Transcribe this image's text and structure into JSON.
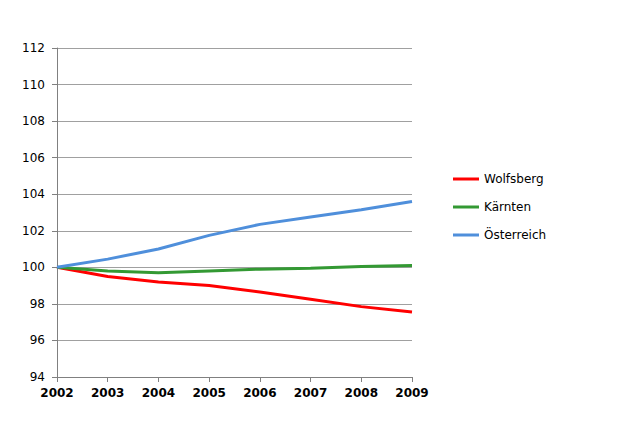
{
  "chart_data": {
    "type": "line",
    "categories": [
      "2002",
      "2003",
      "2004",
      "2005",
      "2006",
      "2007",
      "2008",
      "2009"
    ],
    "series": [
      {
        "name": "Wolfsberg",
        "color": "#ff0000",
        "values": [
          100,
          99.5,
          99.2,
          99.0,
          98.65,
          98.25,
          97.85,
          97.55
        ]
      },
      {
        "name": "Kärnten",
        "color": "#339933",
        "values": [
          100,
          99.8,
          99.7,
          99.8,
          99.9,
          99.95,
          100.05,
          100.1
        ]
      },
      {
        "name": "Österreich",
        "color": "#4f8fdb",
        "values": [
          100,
          100.45,
          101.0,
          101.75,
          102.35,
          102.75,
          103.15,
          103.6
        ]
      }
    ],
    "ylim": [
      94,
      112
    ],
    "yticks": [
      94,
      96,
      98,
      100,
      102,
      104,
      106,
      108,
      110,
      112
    ],
    "grid": true,
    "legend": "right"
  }
}
